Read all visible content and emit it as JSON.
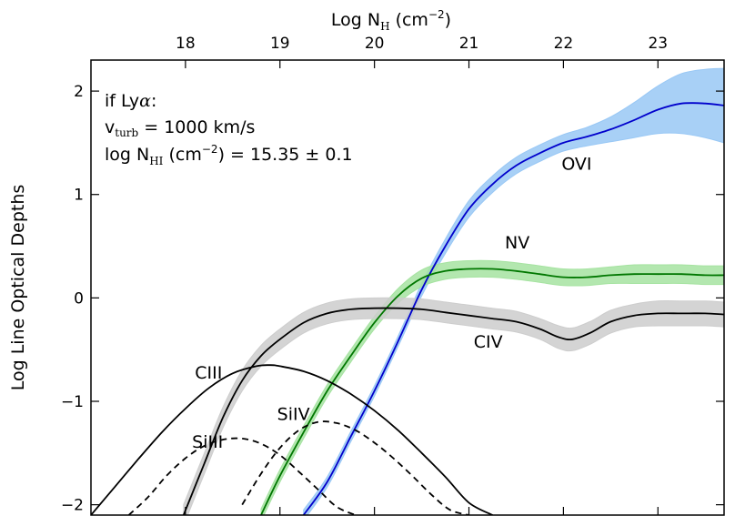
{
  "chart_data": {
    "type": "line",
    "title": "",
    "xlabel": "Log N",
    "xlabel_sub": "H",
    "xlabel_unit": "(cm",
    "xlabel_unit_sup": "−2",
    "xlabel_unit_close": ")",
    "ylabel": "Log Line Optical Depths",
    "xlim": [
      17.0,
      23.7
    ],
    "ylim": [
      -2.1,
      2.3
    ],
    "x_ticks": [
      18,
      19,
      20,
      21,
      22,
      23
    ],
    "x_tick_labels": [
      "18",
      "19",
      "20",
      "21",
      "22",
      "23"
    ],
    "y_ticks": [
      -2,
      -1,
      0,
      1,
      2
    ],
    "y_tick_labels": [
      "−2",
      "−1",
      "0",
      "1",
      "2"
    ],
    "x_axis_position": "top",
    "grid": false,
    "annotation": {
      "line1_prefix": "if Ly",
      "line1_alpha": "α",
      "line1_suffix": ":",
      "line2_v": "v",
      "line2_sub": "turb",
      "line2_rest": " = 1000 km/s",
      "line3_log": "log N",
      "line3_sub": "HI",
      "line3_unit": " (cm",
      "line3_sup": "−2",
      "line3_rest": ") = 15.35 ± 0.1"
    },
    "series": [
      {
        "name": "OVI",
        "color": "#0000cc",
        "band_color": "#99c8f5",
        "style": "solid",
        "x": [
          19.25,
          19.5,
          19.75,
          20.0,
          20.25,
          20.5,
          20.75,
          21.0,
          21.25,
          21.5,
          21.75,
          22.0,
          22.25,
          22.5,
          22.75,
          23.0,
          23.25,
          23.5,
          23.7
        ],
        "values": [
          -2.1,
          -1.78,
          -1.34,
          -0.9,
          -0.42,
          0.08,
          0.5,
          0.86,
          1.1,
          1.28,
          1.4,
          1.5,
          1.56,
          1.63,
          1.72,
          1.82,
          1.88,
          1.88,
          1.86
        ],
        "band": [
          0.05,
          0.05,
          0.05,
          0.05,
          0.05,
          0.06,
          0.07,
          0.08,
          0.08,
          0.08,
          0.08,
          0.08,
          0.09,
          0.12,
          0.17,
          0.23,
          0.29,
          0.33,
          0.36
        ]
      },
      {
        "name": "NV",
        "color": "#007700",
        "band_color": "#a6e3a1",
        "style": "solid",
        "x": [
          18.8,
          19.0,
          19.25,
          19.5,
          19.75,
          20.0,
          20.25,
          20.5,
          20.75,
          21.0,
          21.25,
          21.5,
          21.75,
          22.0,
          22.25,
          22.5,
          22.75,
          23.0,
          23.25,
          23.5,
          23.7
        ],
        "values": [
          -2.1,
          -1.72,
          -1.3,
          -0.9,
          -0.56,
          -0.24,
          0.02,
          0.19,
          0.26,
          0.28,
          0.28,
          0.26,
          0.23,
          0.2,
          0.2,
          0.22,
          0.23,
          0.23,
          0.23,
          0.22,
          0.22
        ],
        "band": [
          0.06,
          0.06,
          0.06,
          0.06,
          0.06,
          0.06,
          0.07,
          0.08,
          0.08,
          0.08,
          0.08,
          0.08,
          0.08,
          0.08,
          0.08,
          0.08,
          0.09,
          0.09,
          0.09,
          0.09,
          0.09
        ]
      },
      {
        "name": "CIV",
        "color": "#000000",
        "band_color": "#cdcdcd",
        "style": "solid",
        "x": [
          17.98,
          18.2,
          18.4,
          18.6,
          18.8,
          19.0,
          19.25,
          19.5,
          19.75,
          20.0,
          20.25,
          20.5,
          20.75,
          21.0,
          21.25,
          21.5,
          21.75,
          21.95,
          22.1,
          22.3,
          22.5,
          22.75,
          23.0,
          23.25,
          23.5,
          23.7
        ],
        "values": [
          -2.1,
          -1.6,
          -1.15,
          -0.8,
          -0.56,
          -0.4,
          -0.24,
          -0.15,
          -0.11,
          -0.1,
          -0.1,
          -0.11,
          -0.14,
          -0.17,
          -0.2,
          -0.23,
          -0.3,
          -0.38,
          -0.4,
          -0.33,
          -0.23,
          -0.17,
          -0.15,
          -0.15,
          -0.15,
          -0.16
        ],
        "band": [
          0.1,
          0.1,
          0.1,
          0.1,
          0.1,
          0.1,
          0.1,
          0.1,
          0.1,
          0.1,
          0.1,
          0.1,
          0.1,
          0.1,
          0.1,
          0.1,
          0.1,
          0.11,
          0.11,
          0.11,
          0.11,
          0.11,
          0.12,
          0.12,
          0.12,
          0.12
        ]
      },
      {
        "name": "CIII",
        "color": "#000000",
        "style": "solid",
        "x": [
          17.0,
          17.25,
          17.5,
          17.75,
          18.0,
          18.25,
          18.5,
          18.75,
          18.9,
          19.0,
          19.25,
          19.5,
          19.75,
          20.0,
          20.25,
          20.5,
          20.75,
          21.0,
          21.25
        ],
        "values": [
          -2.1,
          -1.83,
          -1.56,
          -1.3,
          -1.07,
          -0.87,
          -0.73,
          -0.66,
          -0.65,
          -0.66,
          -0.71,
          -0.8,
          -0.93,
          -1.09,
          -1.28,
          -1.5,
          -1.73,
          -1.98,
          -2.1
        ]
      },
      {
        "name": "SiIII",
        "color": "#000000",
        "style": "dashed",
        "x": [
          17.4,
          17.6,
          17.8,
          18.0,
          18.2,
          18.4,
          18.6,
          18.8,
          19.0,
          19.2,
          19.4,
          19.6,
          19.8
        ],
        "values": [
          -2.1,
          -1.93,
          -1.72,
          -1.55,
          -1.43,
          -1.37,
          -1.36,
          -1.41,
          -1.52,
          -1.68,
          -1.85,
          -2.02,
          -2.1
        ]
      },
      {
        "name": "SiIV",
        "color": "#000000",
        "style": "dashed",
        "x": [
          18.6,
          18.8,
          19.0,
          19.2,
          19.4,
          19.6,
          19.8,
          20.0,
          20.2,
          20.4,
          20.6,
          20.8,
          21.0
        ],
        "values": [
          -2.0,
          -1.7,
          -1.45,
          -1.28,
          -1.2,
          -1.21,
          -1.28,
          -1.4,
          -1.55,
          -1.72,
          -1.9,
          -2.05,
          -2.1
        ]
      }
    ],
    "labels": [
      {
        "text": "OVI",
        "x": 21.98,
        "y": 1.24
      },
      {
        "text": "NV",
        "x": 21.38,
        "y": 0.48
      },
      {
        "text": "CIV",
        "x": 21.05,
        "y": -0.48
      },
      {
        "text": "CIII",
        "x": 18.1,
        "y": -0.78
      },
      {
        "text": "SiIV",
        "x": 18.97,
        "y": -1.18
      },
      {
        "text": "SiIII",
        "x": 18.07,
        "y": -1.45
      }
    ]
  }
}
